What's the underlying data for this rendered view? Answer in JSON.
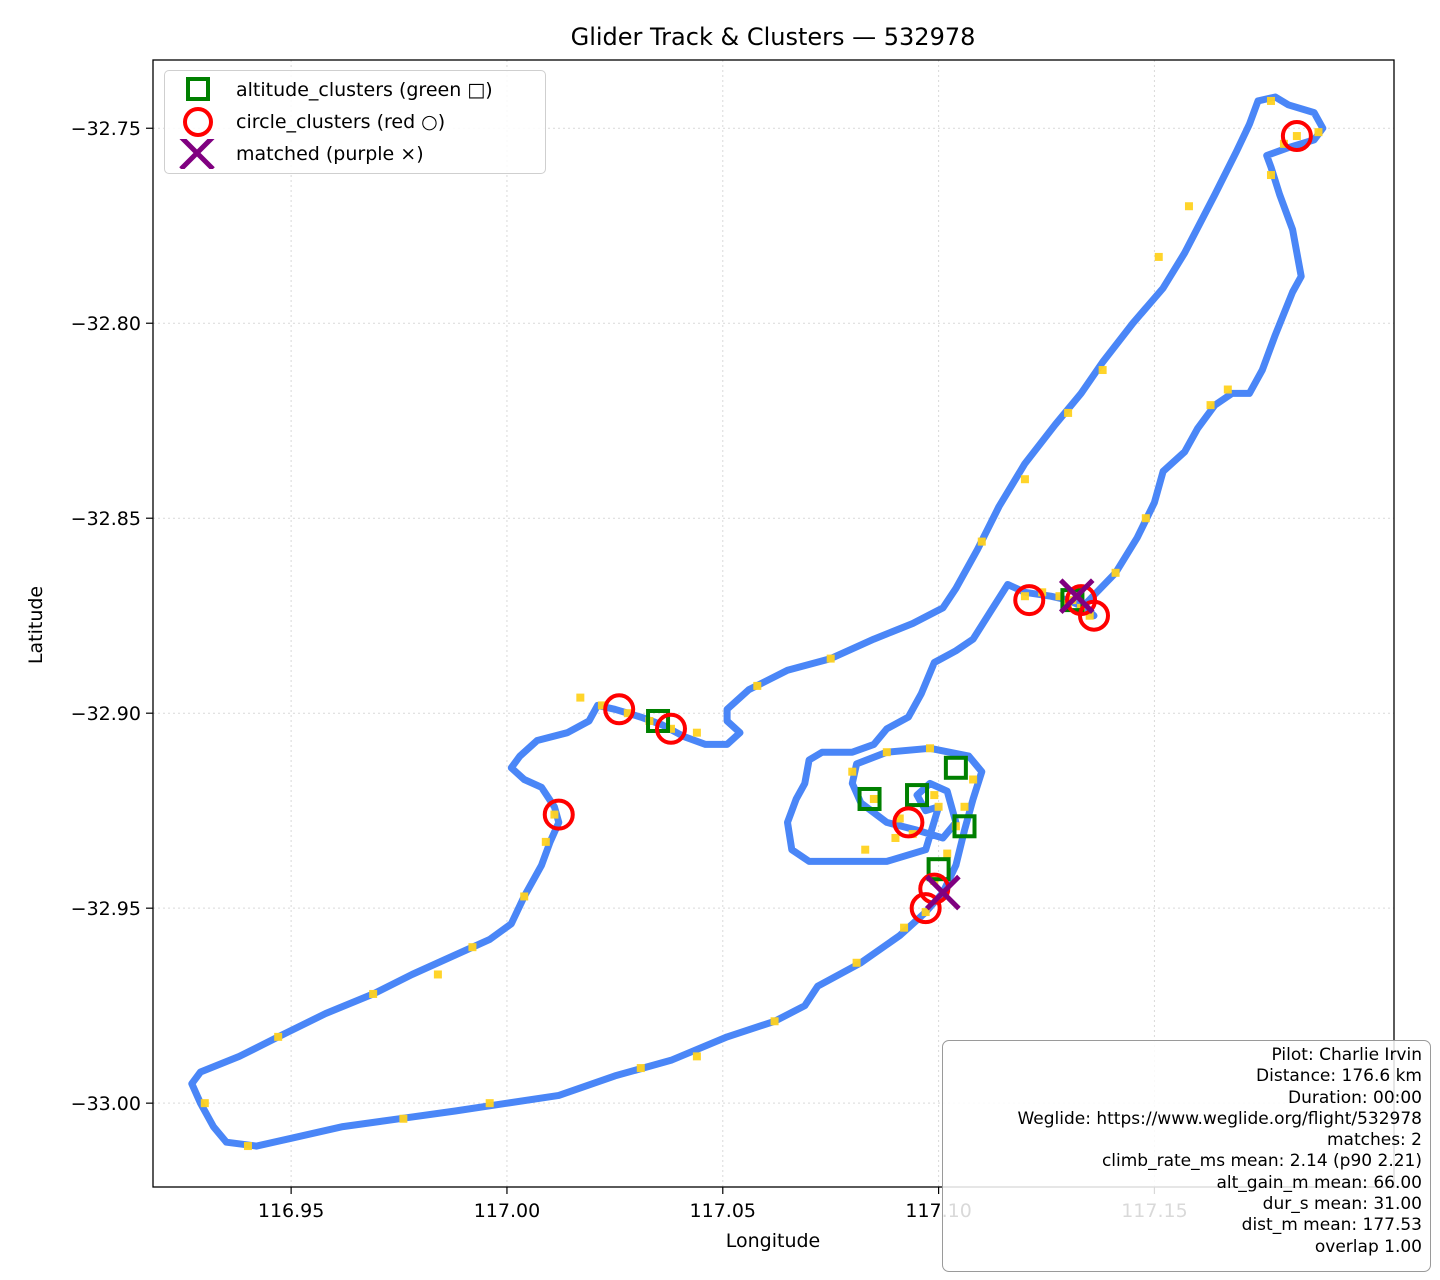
{
  "chart_data": {
    "type": "scatter",
    "title": "Glider Track & Clusters — 532978",
    "xlabel": "Longitude",
    "ylabel": "Latitude",
    "xlim": [
      116.918,
      117.2055
    ],
    "ylim": [
      -33.0215,
      -32.7325
    ],
    "xticks": [
      116.95,
      117.0,
      117.05,
      117.1,
      117.15
    ],
    "xtick_labels": [
      "116.95",
      "117.00",
      "117.05",
      "117.10",
      "117.15"
    ],
    "yticks": [
      -32.75,
      -32.8,
      -32.85,
      -32.9,
      -32.95,
      -33.0
    ],
    "ytick_labels": [
      "−32.75",
      "−32.80",
      "−32.85",
      "−32.90",
      "−32.95",
      "−33.00"
    ],
    "grid": true,
    "legend_position": "upper-left",
    "legend": [
      {
        "label": "altitude_clusters (green □)",
        "marker": "square",
        "color": "#008000"
      },
      {
        "label": "circle_clusters (red ○)",
        "marker": "circle",
        "color": "#ff0000"
      },
      {
        "label": "matched (purple ×)",
        "marker": "x",
        "color": "#800080"
      }
    ],
    "colors": {
      "track": "#4a86f7",
      "climb_fixes": "#ffd21f",
      "altitude_clusters": "#008000",
      "circle_clusters": "#ff0000",
      "matched": "#800080"
    },
    "track": [
      [
        117.134,
        -32.872
      ],
      [
        117.141,
        -32.864
      ],
      [
        117.146,
        -32.855
      ],
      [
        117.15,
        -32.846
      ],
      [
        117.152,
        -32.838
      ],
      [
        117.157,
        -32.833
      ],
      [
        117.16,
        -32.827
      ],
      [
        117.164,
        -32.821
      ],
      [
        117.168,
        -32.818
      ],
      [
        117.172,
        -32.818
      ],
      [
        117.175,
        -32.812
      ],
      [
        117.178,
        -32.803
      ],
      [
        117.182,
        -32.792
      ],
      [
        117.184,
        -32.788
      ],
      [
        117.182,
        -32.776
      ],
      [
        117.179,
        -32.767
      ],
      [
        117.177,
        -32.76
      ],
      [
        117.176,
        -32.757
      ],
      [
        117.181,
        -32.755
      ],
      [
        117.187,
        -32.753
      ],
      [
        117.189,
        -32.75
      ],
      [
        117.187,
        -32.746
      ],
      [
        117.181,
        -32.744
      ],
      [
        117.178,
        -32.742
      ],
      [
        117.174,
        -32.743
      ],
      [
        117.172,
        -32.749
      ],
      [
        117.169,
        -32.756
      ],
      [
        117.164,
        -32.767
      ],
      [
        117.157,
        -32.782
      ],
      [
        117.152,
        -32.791
      ],
      [
        117.145,
        -32.8
      ],
      [
        117.138,
        -32.81
      ],
      [
        117.133,
        -32.818
      ],
      [
        117.127,
        -32.826
      ],
      [
        117.12,
        -32.836
      ],
      [
        117.114,
        -32.847
      ],
      [
        117.109,
        -32.858
      ],
      [
        117.104,
        -32.868
      ],
      [
        117.101,
        -32.873
      ],
      [
        117.094,
        -32.877
      ],
      [
        117.085,
        -32.881
      ],
      [
        117.075,
        -32.886
      ],
      [
        117.065,
        -32.889
      ],
      [
        117.056,
        -32.894
      ],
      [
        117.051,
        -32.899
      ],
      [
        117.051,
        -32.902
      ],
      [
        117.054,
        -32.905
      ],
      [
        117.051,
        -32.908
      ],
      [
        117.046,
        -32.908
      ],
      [
        117.041,
        -32.906
      ],
      [
        117.036,
        -32.903
      ],
      [
        117.031,
        -32.901
      ],
      [
        117.025,
        -32.899
      ],
      [
        117.021,
        -32.898
      ],
      [
        117.019,
        -32.902
      ],
      [
        117.014,
        -32.905
      ],
      [
        117.007,
        -32.907
      ],
      [
        117.003,
        -32.911
      ],
      [
        117.001,
        -32.914
      ],
      [
        117.004,
        -32.917
      ],
      [
        117.008,
        -32.919
      ],
      [
        117.011,
        -32.924
      ],
      [
        117.012,
        -32.928
      ],
      [
        117.01,
        -32.933
      ],
      [
        117.008,
        -32.939
      ],
      [
        117.004,
        -32.947
      ],
      [
        117.001,
        -32.954
      ],
      [
        116.996,
        -32.958
      ],
      [
        116.988,
        -32.962
      ],
      [
        116.978,
        -32.967
      ],
      [
        116.969,
        -32.972
      ],
      [
        116.958,
        -32.977
      ],
      [
        116.947,
        -32.983
      ],
      [
        116.938,
        -32.988
      ],
      [
        116.929,
        -32.992
      ],
      [
        116.927,
        -32.995
      ],
      [
        116.929,
        -33.0
      ],
      [
        116.932,
        -33.006
      ],
      [
        116.935,
        -33.01
      ],
      [
        116.942,
        -33.011
      ],
      [
        116.95,
        -33.009
      ],
      [
        116.962,
        -33.006
      ],
      [
        116.975,
        -33.004
      ],
      [
        116.988,
        -33.002
      ],
      [
        117.0,
        -33.0
      ],
      [
        117.012,
        -32.998
      ],
      [
        117.025,
        -32.993
      ],
      [
        117.038,
        -32.989
      ],
      [
        117.051,
        -32.983
      ],
      [
        117.062,
        -32.979
      ],
      [
        117.069,
        -32.975
      ],
      [
        117.072,
        -32.97
      ],
      [
        117.082,
        -32.964
      ],
      [
        117.091,
        -32.957
      ],
      [
        117.097,
        -32.951
      ],
      [
        117.101,
        -32.946
      ],
      [
        117.104,
        -32.939
      ],
      [
        117.106,
        -32.93
      ],
      [
        117.108,
        -32.922
      ],
      [
        117.11,
        -32.915
      ],
      [
        117.107,
        -32.911
      ],
      [
        117.098,
        -32.909
      ],
      [
        117.088,
        -32.91
      ],
      [
        117.081,
        -32.913
      ],
      [
        117.08,
        -32.918
      ],
      [
        117.082,
        -32.923
      ],
      [
        117.088,
        -32.928
      ],
      [
        117.095,
        -32.93
      ],
      [
        117.101,
        -32.932
      ],
      [
        117.104,
        -32.928
      ],
      [
        117.102,
        -32.92
      ],
      [
        117.098,
        -32.918
      ],
      [
        117.095,
        -32.921
      ],
      [
        117.097,
        -32.925
      ],
      [
        117.1,
        -32.924
      ],
      [
        117.097,
        -32.935
      ],
      [
        117.088,
        -32.938
      ],
      [
        117.078,
        -32.938
      ],
      [
        117.07,
        -32.938
      ],
      [
        117.066,
        -32.935
      ],
      [
        117.065,
        -32.928
      ],
      [
        117.067,
        -32.922
      ],
      [
        117.069,
        -32.918
      ],
      [
        117.07,
        -32.912
      ],
      [
        117.073,
        -32.91
      ],
      [
        117.08,
        -32.91
      ],
      [
        117.085,
        -32.908
      ],
      [
        117.088,
        -32.904
      ],
      [
        117.093,
        -32.901
      ],
      [
        117.096,
        -32.895
      ],
      [
        117.099,
        -32.887
      ],
      [
        117.104,
        -32.884
      ],
      [
        117.108,
        -32.881
      ],
      [
        117.112,
        -32.874
      ],
      [
        117.116,
        -32.867
      ],
      [
        117.12,
        -32.869
      ],
      [
        117.126,
        -32.87
      ],
      [
        117.13,
        -32.871
      ],
      [
        117.134,
        -32.873
      ],
      [
        117.136,
        -32.875
      ]
    ],
    "climb_fixes": [
      [
        117.12,
        -32.87
      ],
      [
        117.124,
        -32.869
      ],
      [
        117.128,
        -32.87
      ],
      [
        117.131,
        -32.871
      ],
      [
        117.133,
        -32.873
      ],
      [
        117.135,
        -32.875
      ],
      [
        117.132,
        -32.869
      ],
      [
        117.13,
        -32.872
      ],
      [
        117.183,
        -32.752
      ],
      [
        117.18,
        -32.754
      ],
      [
        117.177,
        -32.743
      ],
      [
        117.188,
        -32.751
      ],
      [
        117.177,
        -32.762
      ],
      [
        117.017,
        -32.896
      ],
      [
        117.022,
        -32.898
      ],
      [
        117.028,
        -32.9
      ],
      [
        117.033,
        -32.902
      ],
      [
        117.038,
        -32.904
      ],
      [
        117.044,
        -32.905
      ],
      [
        117.011,
        -32.926
      ],
      [
        116.992,
        -32.96
      ],
      [
        116.969,
        -32.972
      ],
      [
        117.167,
        -32.817
      ],
      [
        117.163,
        -32.821
      ],
      [
        117.1,
        -32.924
      ],
      [
        117.091,
        -32.927
      ],
      [
        117.094,
        -32.931
      ],
      [
        117.099,
        -32.943
      ],
      [
        117.097,
        -32.951
      ],
      [
        117.102,
        -32.936
      ],
      [
        117.085,
        -32.922
      ],
      [
        117.08,
        -32.915
      ],
      [
        117.088,
        -32.91
      ],
      [
        117.098,
        -32.909
      ],
      [
        117.108,
        -32.917
      ],
      [
        117.106,
        -32.924
      ],
      [
        117.099,
        -32.921
      ],
      [
        117.083,
        -32.935
      ],
      [
        117.09,
        -32.932
      ],
      [
        117.104,
        -32.929
      ],
      [
        117.148,
        -32.85
      ],
      [
        117.141,
        -32.864
      ],
      [
        117.158,
        -32.77
      ],
      [
        117.151,
        -32.783
      ],
      [
        117.138,
        -32.812
      ],
      [
        117.13,
        -32.823
      ],
      [
        117.12,
        -32.84
      ],
      [
        117.11,
        -32.856
      ],
      [
        117.062,
        -32.979
      ],
      [
        117.044,
        -32.988
      ],
      [
        117.031,
        -32.991
      ],
      [
        116.996,
        -33.0
      ],
      [
        116.976,
        -33.004
      ],
      [
        116.94,
        -33.011
      ],
      [
        116.93,
        -33.0
      ],
      [
        116.947,
        -32.983
      ],
      [
        116.984,
        -32.967
      ],
      [
        117.075,
        -32.886
      ],
      [
        117.058,
        -32.893
      ],
      [
        117.004,
        -32.947
      ],
      [
        117.009,
        -32.933
      ],
      [
        117.081,
        -32.964
      ],
      [
        117.092,
        -32.955
      ]
    ],
    "altitude_clusters": [
      [
        117.131,
        -32.871
      ],
      [
        117.035,
        -32.902
      ],
      [
        117.104,
        -32.914
      ],
      [
        117.084,
        -32.922
      ],
      [
        117.095,
        -32.921
      ],
      [
        117.106,
        -32.929
      ],
      [
        117.1,
        -32.94
      ]
    ],
    "circle_clusters": [
      [
        117.183,
        -32.752
      ],
      [
        117.121,
        -32.871
      ],
      [
        117.133,
        -32.871
      ],
      [
        117.136,
        -32.875
      ],
      [
        117.026,
        -32.899
      ],
      [
        117.038,
        -32.904
      ],
      [
        117.012,
        -32.926
      ],
      [
        117.093,
        -32.928
      ],
      [
        117.099,
        -32.945
      ],
      [
        117.097,
        -32.95
      ]
    ],
    "matched": [
      [
        117.132,
        -32.87
      ],
      [
        117.101,
        -32.946
      ]
    ]
  },
  "info_box": {
    "lines": [
      "Pilot: Charlie Irvin",
      "Distance: 176.6 km",
      "Duration: 00:00",
      "Weglide: https://www.weglide.org/flight/532978",
      "matches: 2",
      "climb_rate_ms mean: 2.14 (p90 2.21)",
      "alt_gain_m mean: 66.00",
      "dur_s mean: 31.00",
      "dist_m mean: 177.53",
      "overlap 1.00"
    ]
  }
}
